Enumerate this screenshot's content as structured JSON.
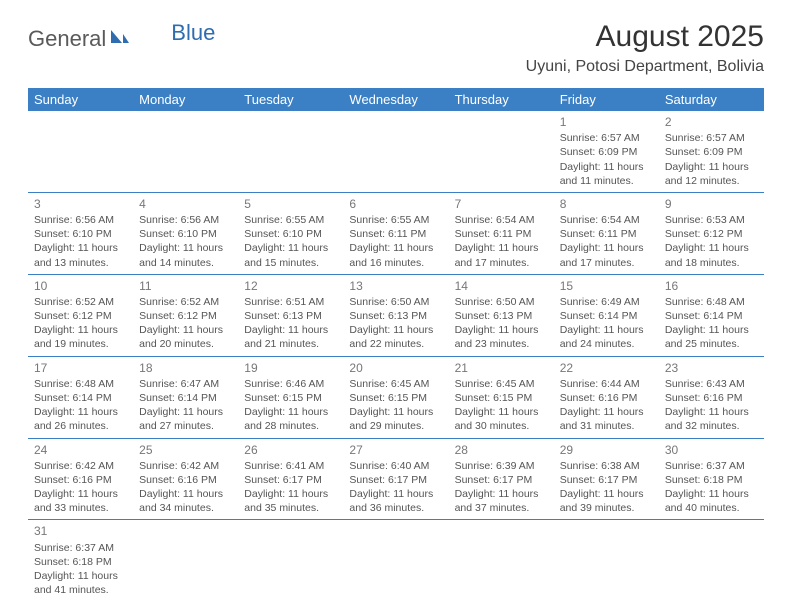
{
  "header": {
    "logo_text_1": "General",
    "logo_text_2": "Blue",
    "title": "August 2025",
    "subtitle": "Uyuni, Potosi Department, Bolivia"
  },
  "colors": {
    "header_bg": "#3b7fc4",
    "header_text": "#ffffff",
    "logo_gray": "#5a5a5a",
    "logo_blue": "#2f6db0",
    "cell_border": "#3b7fc4",
    "text": "#555555"
  },
  "calendar": {
    "columns": [
      "Sunday",
      "Monday",
      "Tuesday",
      "Wednesday",
      "Thursday",
      "Friday",
      "Saturday"
    ],
    "weeks": [
      [
        null,
        null,
        null,
        null,
        null,
        {
          "day": "1",
          "sunrise": "Sunrise: 6:57 AM",
          "sunset": "Sunset: 6:09 PM",
          "daylight": "Daylight: 11 hours and 11 minutes."
        },
        {
          "day": "2",
          "sunrise": "Sunrise: 6:57 AM",
          "sunset": "Sunset: 6:09 PM",
          "daylight": "Daylight: 11 hours and 12 minutes."
        }
      ],
      [
        {
          "day": "3",
          "sunrise": "Sunrise: 6:56 AM",
          "sunset": "Sunset: 6:10 PM",
          "daylight": "Daylight: 11 hours and 13 minutes."
        },
        {
          "day": "4",
          "sunrise": "Sunrise: 6:56 AM",
          "sunset": "Sunset: 6:10 PM",
          "daylight": "Daylight: 11 hours and 14 minutes."
        },
        {
          "day": "5",
          "sunrise": "Sunrise: 6:55 AM",
          "sunset": "Sunset: 6:10 PM",
          "daylight": "Daylight: 11 hours and 15 minutes."
        },
        {
          "day": "6",
          "sunrise": "Sunrise: 6:55 AM",
          "sunset": "Sunset: 6:11 PM",
          "daylight": "Daylight: 11 hours and 16 minutes."
        },
        {
          "day": "7",
          "sunrise": "Sunrise: 6:54 AM",
          "sunset": "Sunset: 6:11 PM",
          "daylight": "Daylight: 11 hours and 17 minutes."
        },
        {
          "day": "8",
          "sunrise": "Sunrise: 6:54 AM",
          "sunset": "Sunset: 6:11 PM",
          "daylight": "Daylight: 11 hours and 17 minutes."
        },
        {
          "day": "9",
          "sunrise": "Sunrise: 6:53 AM",
          "sunset": "Sunset: 6:12 PM",
          "daylight": "Daylight: 11 hours and 18 minutes."
        }
      ],
      [
        {
          "day": "10",
          "sunrise": "Sunrise: 6:52 AM",
          "sunset": "Sunset: 6:12 PM",
          "daylight": "Daylight: 11 hours and 19 minutes."
        },
        {
          "day": "11",
          "sunrise": "Sunrise: 6:52 AM",
          "sunset": "Sunset: 6:12 PM",
          "daylight": "Daylight: 11 hours and 20 minutes."
        },
        {
          "day": "12",
          "sunrise": "Sunrise: 6:51 AM",
          "sunset": "Sunset: 6:13 PM",
          "daylight": "Daylight: 11 hours and 21 minutes."
        },
        {
          "day": "13",
          "sunrise": "Sunrise: 6:50 AM",
          "sunset": "Sunset: 6:13 PM",
          "daylight": "Daylight: 11 hours and 22 minutes."
        },
        {
          "day": "14",
          "sunrise": "Sunrise: 6:50 AM",
          "sunset": "Sunset: 6:13 PM",
          "daylight": "Daylight: 11 hours and 23 minutes."
        },
        {
          "day": "15",
          "sunrise": "Sunrise: 6:49 AM",
          "sunset": "Sunset: 6:14 PM",
          "daylight": "Daylight: 11 hours and 24 minutes."
        },
        {
          "day": "16",
          "sunrise": "Sunrise: 6:48 AM",
          "sunset": "Sunset: 6:14 PM",
          "daylight": "Daylight: 11 hours and 25 minutes."
        }
      ],
      [
        {
          "day": "17",
          "sunrise": "Sunrise: 6:48 AM",
          "sunset": "Sunset: 6:14 PM",
          "daylight": "Daylight: 11 hours and 26 minutes."
        },
        {
          "day": "18",
          "sunrise": "Sunrise: 6:47 AM",
          "sunset": "Sunset: 6:14 PM",
          "daylight": "Daylight: 11 hours and 27 minutes."
        },
        {
          "day": "19",
          "sunrise": "Sunrise: 6:46 AM",
          "sunset": "Sunset: 6:15 PM",
          "daylight": "Daylight: 11 hours and 28 minutes."
        },
        {
          "day": "20",
          "sunrise": "Sunrise: 6:45 AM",
          "sunset": "Sunset: 6:15 PM",
          "daylight": "Daylight: 11 hours and 29 minutes."
        },
        {
          "day": "21",
          "sunrise": "Sunrise: 6:45 AM",
          "sunset": "Sunset: 6:15 PM",
          "daylight": "Daylight: 11 hours and 30 minutes."
        },
        {
          "day": "22",
          "sunrise": "Sunrise: 6:44 AM",
          "sunset": "Sunset: 6:16 PM",
          "daylight": "Daylight: 11 hours and 31 minutes."
        },
        {
          "day": "23",
          "sunrise": "Sunrise: 6:43 AM",
          "sunset": "Sunset: 6:16 PM",
          "daylight": "Daylight: 11 hours and 32 minutes."
        }
      ],
      [
        {
          "day": "24",
          "sunrise": "Sunrise: 6:42 AM",
          "sunset": "Sunset: 6:16 PM",
          "daylight": "Daylight: 11 hours and 33 minutes."
        },
        {
          "day": "25",
          "sunrise": "Sunrise: 6:42 AM",
          "sunset": "Sunset: 6:16 PM",
          "daylight": "Daylight: 11 hours and 34 minutes."
        },
        {
          "day": "26",
          "sunrise": "Sunrise: 6:41 AM",
          "sunset": "Sunset: 6:17 PM",
          "daylight": "Daylight: 11 hours and 35 minutes."
        },
        {
          "day": "27",
          "sunrise": "Sunrise: 6:40 AM",
          "sunset": "Sunset: 6:17 PM",
          "daylight": "Daylight: 11 hours and 36 minutes."
        },
        {
          "day": "28",
          "sunrise": "Sunrise: 6:39 AM",
          "sunset": "Sunset: 6:17 PM",
          "daylight": "Daylight: 11 hours and 37 minutes."
        },
        {
          "day": "29",
          "sunrise": "Sunrise: 6:38 AM",
          "sunset": "Sunset: 6:17 PM",
          "daylight": "Daylight: 11 hours and 39 minutes."
        },
        {
          "day": "30",
          "sunrise": "Sunrise: 6:37 AM",
          "sunset": "Sunset: 6:18 PM",
          "daylight": "Daylight: 11 hours and 40 minutes."
        }
      ],
      [
        {
          "day": "31",
          "sunrise": "Sunrise: 6:37 AM",
          "sunset": "Sunset: 6:18 PM",
          "daylight": "Daylight: 11 hours and 41 minutes."
        },
        null,
        null,
        null,
        null,
        null,
        null
      ]
    ]
  }
}
